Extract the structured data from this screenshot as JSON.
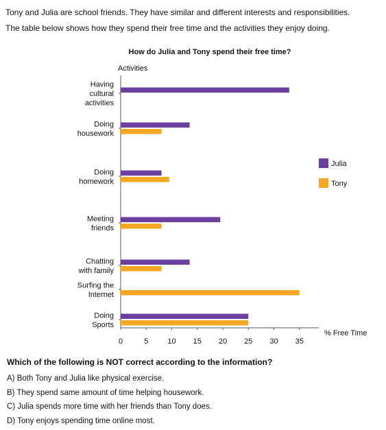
{
  "intro": [
    "Tony and Julia are school friends. They have similar and different interests and responsibilities.",
    "The table below shows how they spend their free time and the activities they enjoy doing."
  ],
  "chart_data": {
    "type": "bar",
    "orientation": "horizontal",
    "title": "How do Julia and Tony spend their free time?",
    "ylabel": "Activities",
    "xlabel": "% Free Time",
    "xlim": [
      0,
      35
    ],
    "xticks": [
      0,
      5,
      10,
      15,
      20,
      25,
      30,
      35
    ],
    "categories": [
      [
        "Having",
        "cultural",
        "activities"
      ],
      [
        "Doing",
        "housework"
      ],
      [
        "Doing",
        "homework"
      ],
      [
        "Meeting",
        "friends"
      ],
      [
        "Chatting",
        "with family"
      ],
      [
        "Surfing the",
        "Internet"
      ],
      [
        "Doing",
        "Sports"
      ]
    ],
    "series": [
      {
        "name": "Julia",
        "color": "#6a3fa0",
        "values": [
          33,
          13.5,
          8,
          19.5,
          13.5,
          0,
          25
        ]
      },
      {
        "name": "Tony",
        "color": "#f5a623",
        "values": [
          0,
          8,
          9.5,
          8,
          8,
          35,
          25
        ]
      }
    ],
    "grid": false,
    "legend": "right"
  },
  "question": {
    "text": "Which of the following is NOT correct according to the information?",
    "options": [
      "A) Both Tony and Julia like physical exercise.",
      "B) They spend same amount of time helping housework.",
      "C) Julia spends more time with her friends than Tony does.",
      "D) Tony enjoys spending time online most."
    ]
  }
}
